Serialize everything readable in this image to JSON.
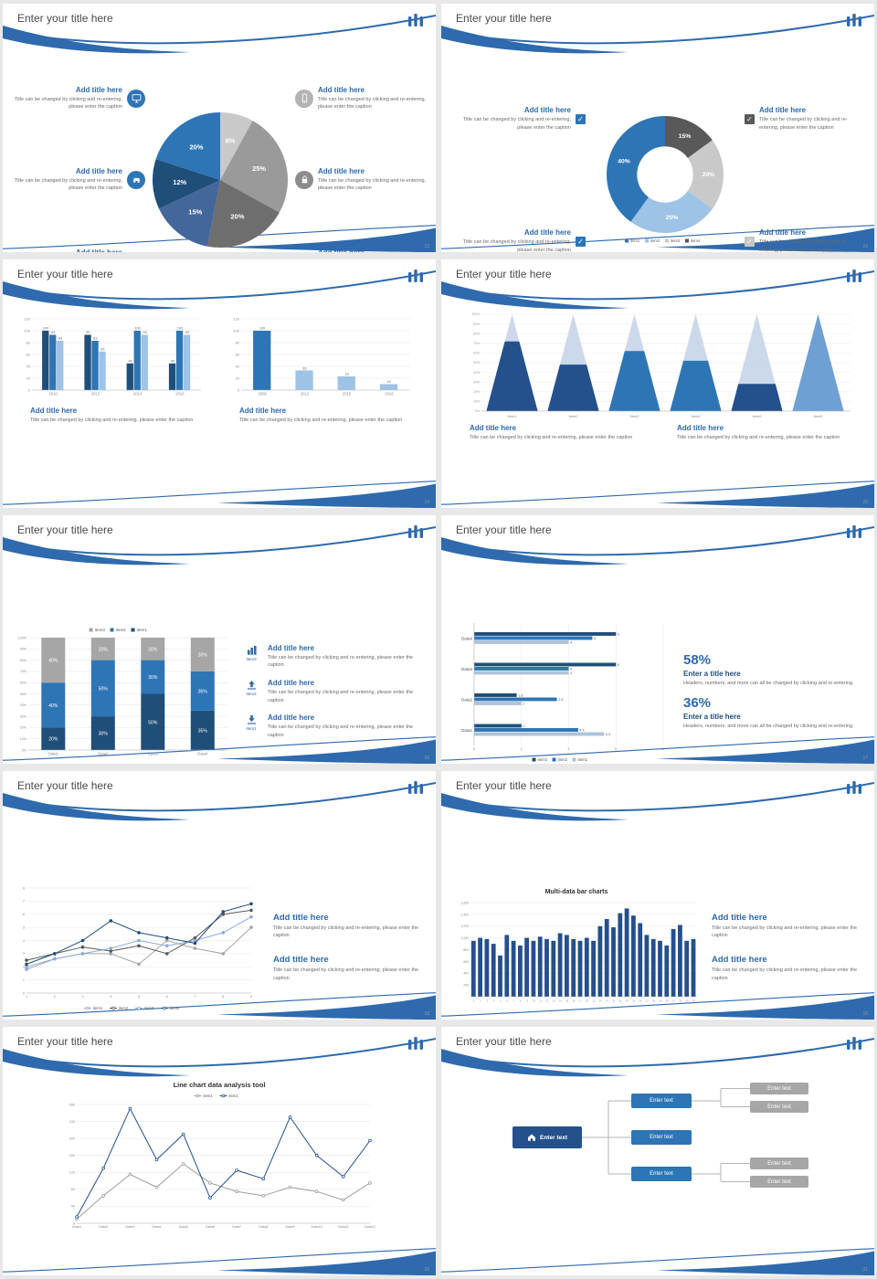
{
  "common": {
    "slide_title": "Enter your title here",
    "add_title": "Add title here",
    "caption": "Title can be changed by clicking and re-entering, please enter the caption",
    "enter_text": "Enter text",
    "enter_title": "Enter a title here",
    "stat_caption": "Headers, numbers, and more can all be changed by clicking and re-entering.",
    "check": "✓"
  },
  "colors": {
    "accent": "#2E6AAD",
    "navy": "#1F4E79",
    "mid_blue": "#2E75B6",
    "light_blue": "#9DC3E6",
    "gray": "#A6A6A6"
  },
  "slides": {
    "s12": {
      "page": "12",
      "icons": [
        "monitor",
        "car",
        "book",
        "phone",
        "lock",
        "bicycle"
      ]
    },
    "s13": {
      "page": "13",
      "checkboxes": [
        "blue",
        "blue",
        "dark-gray",
        "light-gray"
      ]
    },
    "s14": {
      "page": "14"
    },
    "s15": {
      "page": "15"
    },
    "s16": {
      "page": "16",
      "icons": [
        "bar-chart",
        "upload",
        "download"
      ],
      "icon_labels": [
        "Item3",
        "Item2",
        "Item1"
      ]
    },
    "s17": {
      "page": "17",
      "stats": [
        {
          "value": "58%"
        },
        {
          "value": "36%"
        }
      ]
    },
    "s18": {
      "page": "18"
    },
    "s19": {
      "page": "19",
      "chart_title": "Multi-data bar charts"
    },
    "s20": {
      "page": "20",
      "chart_title": "Line chart data analysis tool"
    },
    "s21": {
      "page": "21",
      "nodes": {
        "root": "Enter text",
        "mid": [
          "Enter text",
          "Enter text",
          "Enter text"
        ],
        "right": [
          "Enter text",
          "Enter text",
          "Enter text",
          "Enter text"
        ]
      }
    }
  },
  "chart_data": [
    {
      "type": "pie",
      "title": "",
      "values": [
        8,
        25,
        20,
        15,
        12,
        20
      ],
      "labels": [
        "8%",
        "25%",
        "20%",
        "15%",
        "12%",
        "20%"
      ],
      "colors": [
        "#C9C9C9",
        "#9A9A9A",
        "#6E6E6E",
        "#44679B",
        "#1F4E79",
        "#2E75B6"
      ]
    },
    {
      "type": "donut",
      "title": "",
      "values": [
        15,
        20,
        25,
        40
      ],
      "labels": [
        "15%",
        "20%",
        "25%",
        "40%"
      ],
      "colors": [
        "#595959",
        "#C9C9C9",
        "#9DC3E6",
        "#2E75B6"
      ],
      "legend": [
        {
          "label": "item1",
          "color": "#2E75B6"
        },
        {
          "label": "item2",
          "color": "#9DC3E6"
        },
        {
          "label": "item3",
          "color": "#C9C9C9"
        },
        {
          "label": "item4",
          "color": "#595959"
        }
      ]
    },
    {
      "type": "bar",
      "title": "",
      "categories": [
        "2010",
        "2012",
        "2014",
        "2016"
      ],
      "ymax": 120,
      "yticks": [
        0,
        20,
        40,
        60,
        80,
        100,
        120
      ],
      "show_values": true,
      "maxbw": 8,
      "series": [
        {
          "name": "Series1",
          "color": "#1F4E79",
          "values": [
            100,
            93,
            45,
            45
          ]
        },
        {
          "name": "Series2",
          "color": "#2E75B6",
          "values": [
            93,
            83,
            100,
            100
          ]
        },
        {
          "name": "Series3",
          "color": "#9DC3E6",
          "values": [
            83,
            65,
            93,
            93
          ]
        }
      ]
    },
    {
      "type": "bar",
      "title": "",
      "categories": [
        "2009",
        "2012",
        "2015",
        "2018"
      ],
      "ymax": 120,
      "yticks": [
        0,
        20,
        40,
        60,
        80,
        100,
        120
      ],
      "show_values": true,
      "maxbw": 20,
      "series": [
        {
          "name": "Series1",
          "color": "#2E75B6",
          "colors": [
            "#2E75B6",
            "#9DC3E6",
            "#9DC3E6",
            "#9DC3E6"
          ],
          "values": [
            100,
            33,
            23,
            10
          ]
        }
      ]
    },
    {
      "type": "cone",
      "title": "",
      "ymax": 100,
      "items": [
        {
          "label": "Item1",
          "v": 72,
          "top": "#C7D5E8",
          "bottom": "#24508C"
        },
        {
          "label": "Item2",
          "v": 48,
          "top": "#C7D5E8",
          "bottom": "#24508C"
        },
        {
          "label": "Item3",
          "v": 62,
          "top": "#C7D5E8",
          "bottom": "#2E75B6"
        },
        {
          "label": "Item4",
          "v": 52,
          "top": "#C7D5E8",
          "bottom": "#2E75B6"
        },
        {
          "label": "Item5",
          "v": 28,
          "top": "#C7D5E8",
          "bottom": "#24508C"
        },
        {
          "label": "Item6",
          "v": 100,
          "top": "#C7D5E8",
          "bottom": "#6FA0D4"
        }
      ]
    },
    {
      "type": "stack100",
      "title": "",
      "categories": [
        "Data1",
        "Data2",
        "Data3",
        "Data4"
      ],
      "legend": [
        {
          "label": "Item3",
          "color": "#A6A6A6"
        },
        {
          "label": "Item2",
          "color": "#2E75B6"
        },
        {
          "label": "Item1",
          "color": "#1F4E79"
        }
      ],
      "series": [
        {
          "name": "Item1",
          "color": "#1F4E79",
          "values": [
            20,
            30,
            50,
            35
          ]
        },
        {
          "name": "Item2",
          "color": "#2E75B6",
          "values": [
            40,
            50,
            30,
            35
          ]
        },
        {
          "name": "Item3",
          "color": "#A6A6A6",
          "values": [
            40,
            20,
            20,
            30
          ]
        }
      ]
    },
    {
      "type": "hbar",
      "title": "",
      "groups": [
        "Data4",
        "Data3",
        "Data2",
        "Data1"
      ],
      "xmax": 8,
      "xticks": [
        0,
        2,
        4,
        6,
        8
      ],
      "legend": [
        {
          "label": "Item3",
          "color": "#1F4E79"
        },
        {
          "label": "Item2",
          "color": "#2E75B6"
        },
        {
          "label": "Item1",
          "color": "#AEC3D8"
        }
      ],
      "series": [
        {
          "name": "Item3",
          "color": "#1F4E79",
          "values": [
            6,
            6,
            1.8,
            2
          ]
        },
        {
          "name": "Item2",
          "color": "#2E75B6",
          "values": [
            5,
            4,
            3.5,
            4.4
          ]
        },
        {
          "name": "Item1",
          "color": "#AEC3D8",
          "values": [
            4,
            4,
            2,
            5.5
          ]
        }
      ]
    },
    {
      "type": "line",
      "title": "",
      "x": [
        "1",
        "2",
        "3",
        "4",
        "5",
        "6",
        "7",
        "8",
        "9"
      ],
      "ymax": 8,
      "ymin": 0,
      "yticks": [
        0,
        1,
        2,
        3,
        4,
        5,
        6,
        7,
        8
      ],
      "legend_pos": "bottom",
      "legend": [
        {
          "label": "item1",
          "color": "#A6A6A6"
        },
        {
          "label": "item2",
          "color": "#595959"
        },
        {
          "label": "item3",
          "color": "#8FAADC"
        },
        {
          "label": "item4",
          "color": "#1F4E79"
        }
      ],
      "series": [
        {
          "name": "item1",
          "color": "#A6A6A6",
          "values": [
            2,
            2.6,
            3,
            3,
            2.2,
            4,
            3.4,
            3,
            5
          ]
        },
        {
          "name": "item2",
          "color": "#595959",
          "values": [
            2.5,
            3,
            3.5,
            3.2,
            3.6,
            3,
            4.2,
            6,
            6.3
          ]
        },
        {
          "name": "item3",
          "color": "#8FAADC",
          "values": [
            1.8,
            2.6,
            3,
            3.4,
            4,
            3.6,
            4,
            4.6,
            5.8
          ]
        },
        {
          "name": "item4",
          "color": "#1F4E79",
          "values": [
            2.2,
            3,
            4,
            5.5,
            4.6,
            4.2,
            3.8,
            6.2,
            6.8
          ]
        }
      ]
    },
    {
      "type": "bar",
      "title": "Multi-data bar charts",
      "ymax": 1600,
      "ml": 20,
      "ts": 3.4,
      "xs": 2.6,
      "maxbw": 5.5,
      "yticks": [
        "200",
        "400",
        "600",
        "800",
        "1,000",
        "1,200",
        "1,400",
        "1,600"
      ],
      "categories": [
        "1",
        "2",
        "3",
        "4",
        "5",
        "6",
        "7",
        "8",
        "9",
        "10",
        "11",
        "12",
        "13",
        "14",
        "15",
        "16",
        "17",
        "18",
        "19",
        "20",
        "21",
        "22",
        "23",
        "24",
        "25",
        "26",
        "27",
        "28",
        "29",
        "30",
        "31",
        "32",
        "33",
        "34"
      ],
      "series": [
        {
          "name": "Series1",
          "color": "#24508C",
          "values": [
            950,
            1000,
            980,
            900,
            700,
            1050,
            950,
            870,
            1000,
            950,
            1020,
            980,
            950,
            1080,
            1050,
            980,
            950,
            1000,
            950,
            1200,
            1320,
            1180,
            1420,
            1500,
            1380,
            1250,
            1050,
            980,
            950,
            870,
            1150,
            1220,
            950,
            980
          ]
        }
      ]
    },
    {
      "type": "line",
      "title": "Line chart data analysis tool",
      "x": [
        "Data1",
        "Data2",
        "Data3",
        "Data4",
        "Data5",
        "Data6",
        "Data7",
        "Data8",
        "Data9",
        "Data10",
        "Data11",
        "Data12"
      ],
      "ymax": 280,
      "ymin": 0,
      "yticks": [
        0,
        40,
        80,
        120,
        160,
        200,
        240,
        280
      ],
      "open": true,
      "legend_pos": "top",
      "legend": [
        {
          "label": "item1",
          "color": "#9E9E9E"
        },
        {
          "label": "item2",
          "color": "#24508C"
        }
      ],
      "series": [
        {
          "name": "item1",
          "color": "#9E9E9E",
          "values": [
            10,
            65,
            115,
            85,
            140,
            95,
            75,
            65,
            85,
            75,
            55,
            95
          ]
        },
        {
          "name": "item2",
          "color": "#24508C",
          "values": [
            15,
            130,
            270,
            150,
            210,
            60,
            125,
            105,
            250,
            160,
            110,
            195
          ]
        }
      ]
    }
  ]
}
